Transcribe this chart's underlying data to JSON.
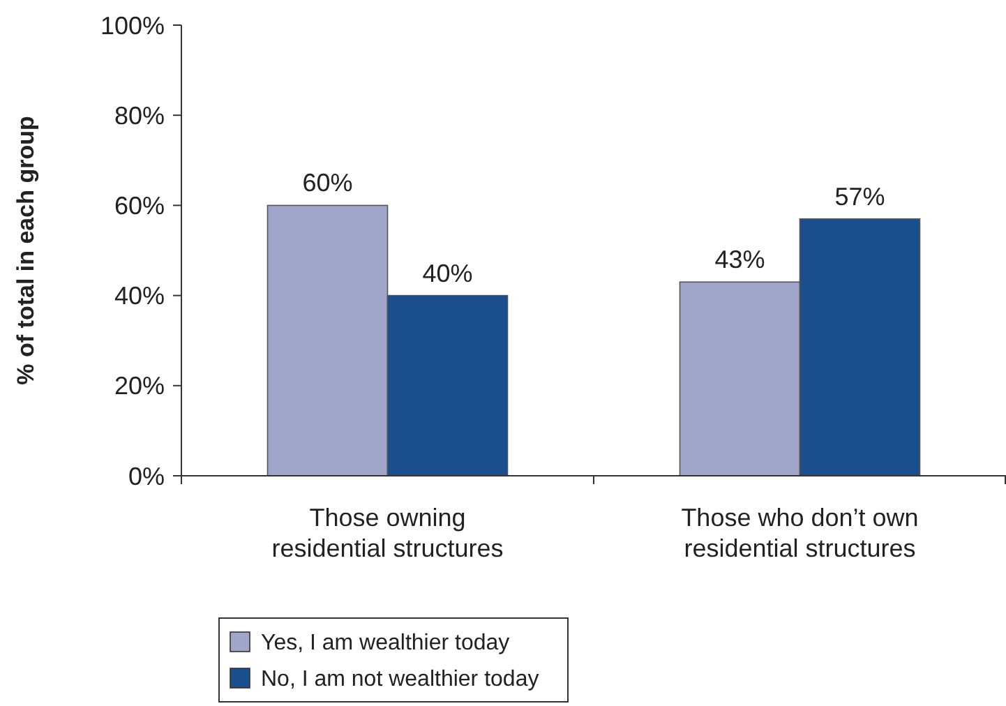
{
  "chart_data": {
    "type": "bar",
    "ylabel": "% of total in each group",
    "categories": [
      "Those owning residential structures",
      "Those who don’t own residential structures"
    ],
    "series": [
      {
        "name": "Yes, I am wealthier today",
        "color": "#a0a6c9",
        "values": [
          60,
          43
        ],
        "value_labels": [
          "60%",
          "43%"
        ]
      },
      {
        "name": "No, I am not wealthier today",
        "color": "#1a4e8c",
        "values": [
          40,
          57
        ],
        "value_labels": [
          "40%",
          "57%"
        ]
      }
    ],
    "ylim": [
      0,
      100
    ],
    "yticks": [
      {
        "value": 0,
        "label": "0%"
      },
      {
        "value": 20,
        "label": "20%"
      },
      {
        "value": 40,
        "label": "40%"
      },
      {
        "value": 60,
        "label": "60%"
      },
      {
        "value": 80,
        "label": "80%"
      },
      {
        "value": 100,
        "label": "100%"
      }
    ],
    "grid": false,
    "legend": "bottom left"
  }
}
